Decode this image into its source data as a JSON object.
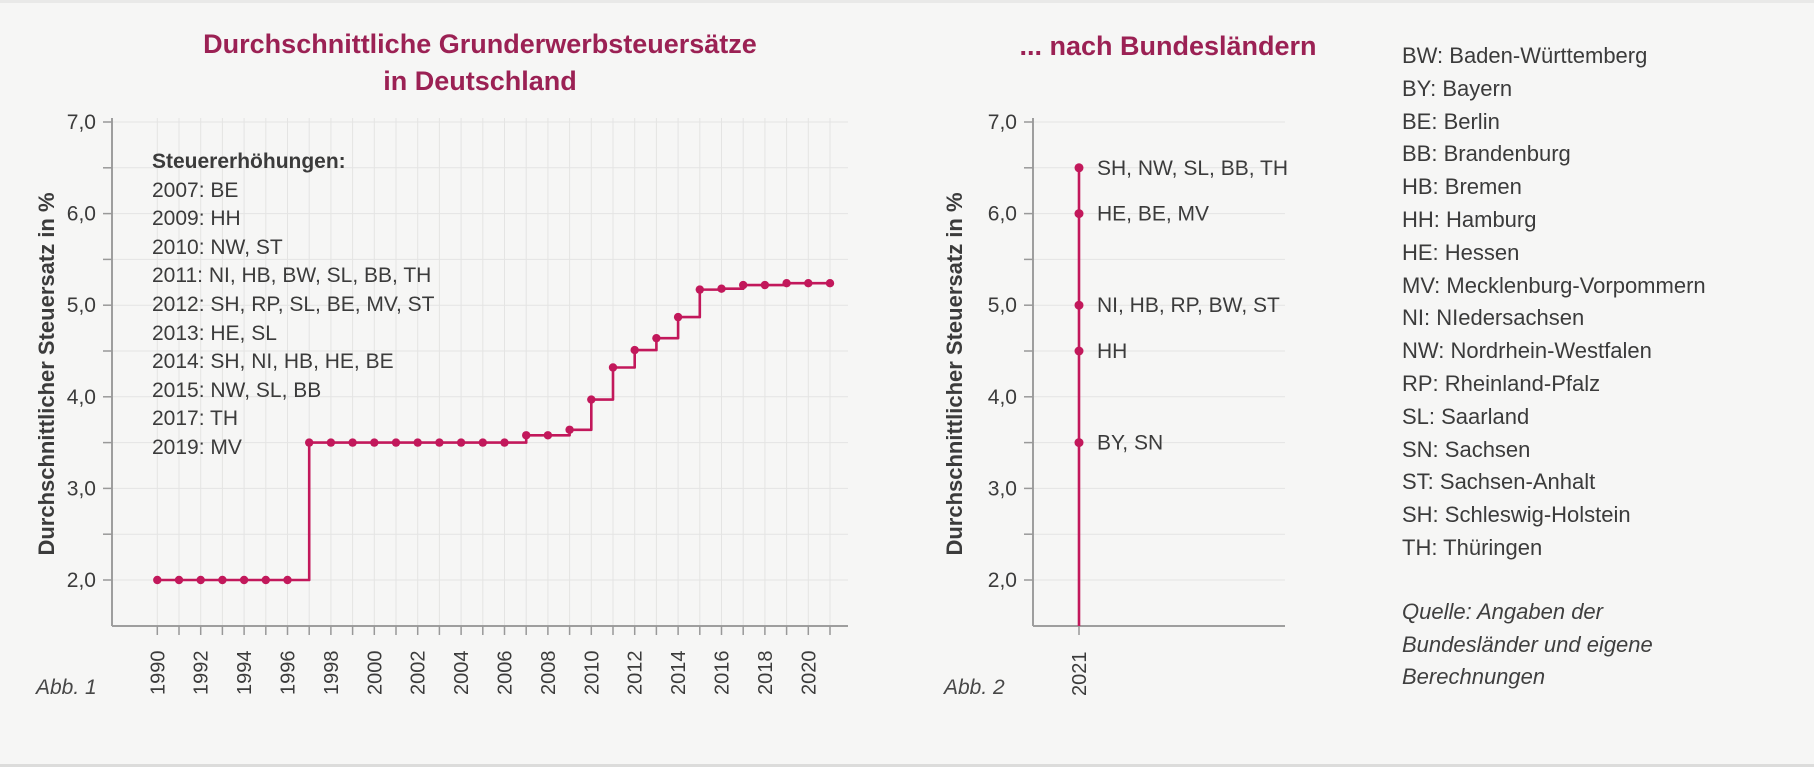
{
  "figure1": {
    "title_line1": "Durchschnittliche Grunderwerbsteuersätze",
    "title_line2": "in Deutschland",
    "ylabel": "Durchschnittlicher Steuersatz in %",
    "caption": "Abb. 1",
    "annotation": {
      "heading": "Steuererhöhungen:",
      "lines": [
        "2007: BE",
        "2009: HH",
        "2010: NW, ST",
        "2011: NI, HB, BW, SL, BB, TH",
        "2012: SH, RP, SL, BE, MV, ST",
        "2013: HE, SL",
        "2014: SH, NI, HB, HE, BE",
        "2015: NW, SL, BB",
        "2017: TH",
        "2019: MV"
      ]
    }
  },
  "figure2": {
    "title": "... nach Bundesländern",
    "ylabel": "Durchschnittlicher Steuersatz in %",
    "caption": "Abb. 2",
    "x_tick_label": "2021"
  },
  "legend": {
    "items": [
      "BW: Baden-Württemberg",
      "BY: Bayern",
      "BE: Berlin",
      "BB: Brandenburg",
      "HB: Bremen",
      "HH: Hamburg",
      "HE: Hessen",
      "MV: Mecklenburg-Vorpommern",
      "NI: NIedersachsen",
      "NW: Nordrhein-Westfalen",
      "RP: Rheinland-Pfalz",
      "SL: Saarland",
      "SN: Sachsen",
      "ST: Sachsen-Anhalt",
      "SH: Schleswig-Holstein",
      "TH: Thüringen"
    ],
    "source_lines": [
      "Quelle: Angaben der",
      "Bundesländer und eigene",
      "Berechnungen"
    ]
  },
  "colors": {
    "title": "#9b2154",
    "line": "#c2185b",
    "axis": "#9e9e9e",
    "grid": "#e4e4e3",
    "tick": "#999999",
    "text": "#3b3b3b"
  },
  "chart_data": [
    {
      "type": "line",
      "step": true,
      "title": "Durchschnittliche Grunderwerbsteuersätze in Deutschland",
      "ylabel": "Durchschnittlicher Steuersatz in %",
      "x": [
        1990,
        1991,
        1992,
        1993,
        1994,
        1995,
        1996,
        1997,
        1998,
        1999,
        2000,
        2001,
        2002,
        2003,
        2004,
        2005,
        2006,
        2007,
        2008,
        2009,
        2010,
        2011,
        2012,
        2013,
        2014,
        2015,
        2016,
        2017,
        2018,
        2019,
        2020,
        2021
      ],
      "values": [
        2.0,
        2.0,
        2.0,
        2.0,
        2.0,
        2.0,
        2.0,
        3.5,
        3.5,
        3.5,
        3.5,
        3.5,
        3.5,
        3.5,
        3.5,
        3.5,
        3.5,
        3.58,
        3.58,
        3.64,
        3.97,
        4.32,
        4.51,
        4.64,
        4.87,
        5.17,
        5.18,
        5.22,
        5.22,
        5.24,
        5.24,
        5.24
      ],
      "ylim": [
        1.5,
        7.0
      ],
      "ytick_values": [
        2.0,
        3.0,
        4.0,
        5.0,
        6.0,
        7.0
      ],
      "ytick_labels": [
        "2,0",
        "3,0",
        "4,0",
        "5,0",
        "6,0",
        "7,0"
      ],
      "minor_ytick_step": 0.5,
      "xtick_labeled_years": [
        1990,
        1992,
        1994,
        1996,
        1998,
        2000,
        2002,
        2004,
        2006,
        2008,
        2010,
        2012,
        2014,
        2016,
        2018,
        2020
      ],
      "grid": true
    },
    {
      "type": "scatter",
      "title": "... nach Bundesländern",
      "ylabel": "Durchschnittlicher Steuersatz in %",
      "x_category": "2021",
      "points": [
        {
          "value": 6.5,
          "label": "SH, NW, SL, BB, TH"
        },
        {
          "value": 6.0,
          "label": "HE, BE, MV"
        },
        {
          "value": 5.0,
          "label": "NI, HB, RP, BW, ST"
        },
        {
          "value": 4.5,
          "label": "HH"
        },
        {
          "value": 3.5,
          "label": "BY, SN"
        }
      ],
      "ylim": [
        1.5,
        7.0
      ],
      "ytick_values": [
        2.0,
        3.0,
        4.0,
        5.0,
        6.0,
        7.0
      ],
      "ytick_labels": [
        "2,0",
        "3,0",
        "4,0",
        "5,0",
        "6,0",
        "7,0"
      ],
      "minor_ytick_step": 0.5,
      "grid": true
    }
  ]
}
